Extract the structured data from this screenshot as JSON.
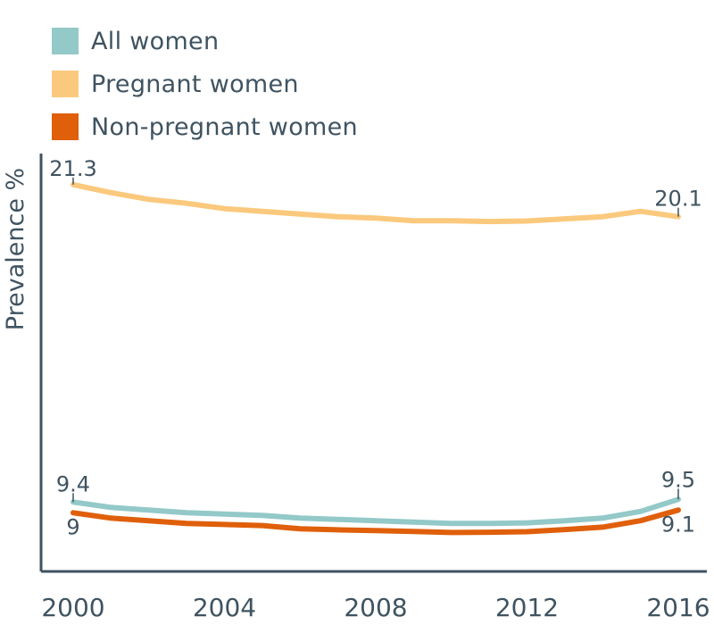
{
  "chart_data": {
    "type": "line",
    "title": "",
    "xlabel": "",
    "ylabel": "Prevalence %",
    "xlim": [
      2000,
      2016
    ],
    "ylim": [
      6.8,
      22.7
    ],
    "x_ticks": [
      "2000",
      "2004",
      "2008",
      "2012",
      "2016"
    ],
    "x": [
      2000,
      2001,
      2002,
      2003,
      2004,
      2005,
      2006,
      2007,
      2008,
      2009,
      2010,
      2011,
      2012,
      2013,
      2014,
      2015,
      2016
    ],
    "legend_position": "top-left",
    "series": [
      {
        "name": "All women",
        "color": "#93c9c8",
        "values": [
          9.4,
          9.2,
          9.1,
          9.0,
          8.95,
          8.9,
          8.8,
          8.75,
          8.7,
          8.65,
          8.6,
          8.6,
          8.62,
          8.7,
          8.8,
          9.05,
          9.5
        ],
        "start_label": "9.4",
        "end_label": "9.5"
      },
      {
        "name": "Pregnant women",
        "color": "#fbc97d",
        "values": [
          21.3,
          21.0,
          20.75,
          20.6,
          20.4,
          20.3,
          20.2,
          20.1,
          20.05,
          19.95,
          19.95,
          19.92,
          19.94,
          20.02,
          20.1,
          20.3,
          20.1
        ],
        "start_label": "21.3",
        "end_label": "20.1"
      },
      {
        "name": "Non-pregnant women",
        "color": "#e05f0b",
        "values": [
          9.0,
          8.8,
          8.7,
          8.6,
          8.56,
          8.52,
          8.4,
          8.36,
          8.33,
          8.3,
          8.26,
          8.27,
          8.29,
          8.37,
          8.46,
          8.7,
          9.1
        ],
        "start_label": "9",
        "end_label": "9.1"
      }
    ],
    "axis_color": "#3f5360",
    "text_color": "#3f5360"
  }
}
